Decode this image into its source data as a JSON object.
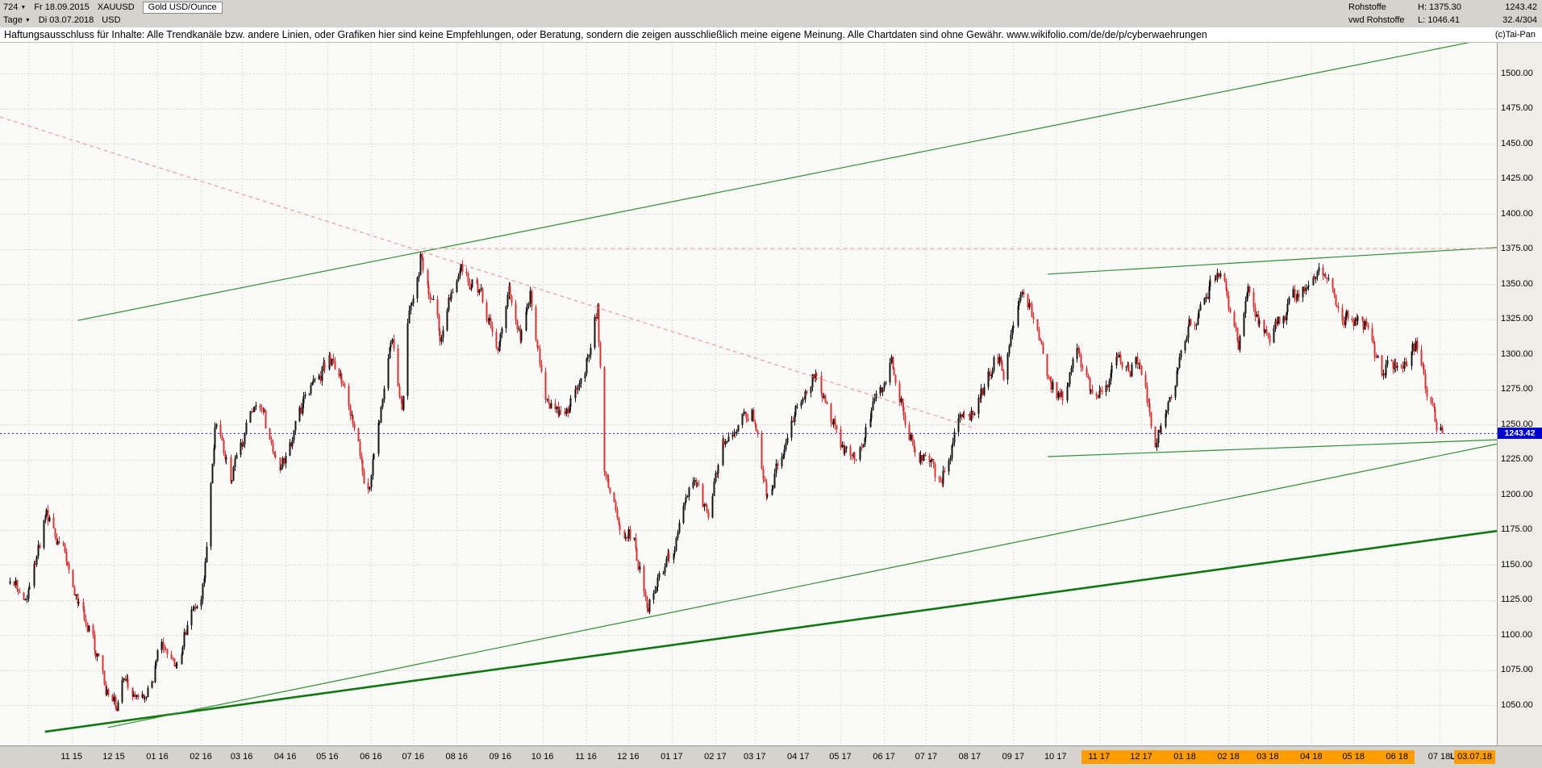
{
  "header": {
    "bars_count": "724",
    "date_from": "Fr 18.09.2015",
    "symbol": "XAUUSD",
    "instrument": "Gold USD/Ounce",
    "timeframe": "Tage",
    "date_to": "Di 03.07.2018",
    "currency": "USD",
    "right": {
      "category": "Rohstoffe",
      "high_label": "H: 1375.30",
      "last": "1243.42",
      "source": "vwd Rohstoffe",
      "low_label": "L: 1046.41",
      "ratio": "32.4/304",
      "copyright": "(c)Tai-Pan"
    }
  },
  "icons": {
    "dropdown": "▼"
  },
  "disclaimer": "Haftungsausschluss für Inhalte: Alle Trendkanäle bzw. andere Linien, oder Grafiken hier sind keine Empfehlungen, oder Beratung, sondern die zeigen ausschließlich meine eigene Meinung. Alle Chartdaten sind ohne Gewähr.  www.wikifolio.com/de/de/p/cyberwaehrungen",
  "chart_data": {
    "type": "candlestick",
    "title": "Gold USD/Ounce",
    "symbol": "XAUUSD",
    "date_start": "2015-09-18",
    "date_end": "2018-07-03",
    "bars": 724,
    "period_high": 1375.3,
    "period_low": 1046.41,
    "last": 1243.42,
    "last_price_label": "1243.42",
    "y_axis": {
      "min": 1050,
      "max": 1500,
      "step": 25,
      "labels": [
        "1500.00",
        "1475.00",
        "1450.00",
        "1425.00",
        "1400.00",
        "1375.00",
        "1350.00",
        "1325.00",
        "1300.00",
        "1275.00",
        "1250.00",
        "1225.00",
        "1200.00",
        "1175.00",
        "1150.00",
        "1125.00",
        "1100.00",
        "1075.00",
        "1050.00"
      ]
    },
    "x_axis": {
      "labels": [
        "11 15",
        "12 15",
        "01 16",
        "02 16",
        "03 16",
        "04 16",
        "05 16",
        "06 16",
        "07 16",
        "08 16",
        "09 16",
        "10 16",
        "11 16",
        "12 16",
        "01 17",
        "02 17",
        "03 17",
        "04 17",
        "05 17",
        "06 17",
        "07 17",
        "08 17",
        "09 17",
        "10 17",
        "11 17",
        "12 17",
        "01 18",
        "02 18",
        "03 18",
        "04 18",
        "05 18",
        "06 18",
        "07 18"
      ],
      "highlight_labels": [
        "11 17",
        "12 17",
        "01 18",
        "02 18",
        "03 18",
        "04 18",
        "05 18",
        "06 18"
      ],
      "end_label": "03.07.18",
      "last_marker": "L"
    },
    "keyframes": [
      [
        "2015-09-18",
        1139
      ],
      [
        "2015-09-29",
        1127
      ],
      [
        "2015-10-14",
        1187
      ],
      [
        "2015-10-28",
        1156
      ],
      [
        "2015-11-27",
        1057
      ],
      [
        "2015-12-03",
        1046.5
      ],
      [
        "2015-12-10",
        1075
      ],
      [
        "2015-12-17",
        1051
      ],
      [
        "2016-01-07",
        1095
      ],
      [
        "2016-01-14",
        1078
      ],
      [
        "2016-01-26",
        1120
      ],
      [
        "2016-02-03",
        1141
      ],
      [
        "2016-02-11",
        1247
      ],
      [
        "2016-02-22",
        1209
      ],
      [
        "2016-03-10",
        1271
      ],
      [
        "2016-03-28",
        1216
      ],
      [
        "2016-04-12",
        1257
      ],
      [
        "2016-05-02",
        1299
      ],
      [
        "2016-05-13",
        1272
      ],
      [
        "2016-05-30",
        1204
      ],
      [
        "2016-06-16",
        1312
      ],
      [
        "2016-06-23",
        1256
      ],
      [
        "2016-06-27",
        1324
      ],
      [
        "2016-07-06",
        1371
      ],
      [
        "2016-07-20",
        1314
      ],
      [
        "2016-08-02",
        1364
      ],
      [
        "2016-08-16",
        1345
      ],
      [
        "2016-08-31",
        1307
      ],
      [
        "2016-09-07",
        1349
      ],
      [
        "2016-09-15",
        1312
      ],
      [
        "2016-09-22",
        1342
      ],
      [
        "2016-10-04",
        1266
      ],
      [
        "2016-10-17",
        1250
      ],
      [
        "2016-11-04",
        1303
      ],
      [
        "2016-11-09",
        1334
      ],
      [
        "2016-11-14",
        1217
      ],
      [
        "2016-11-25",
        1178
      ],
      [
        "2016-12-05",
        1168
      ],
      [
        "2016-12-15",
        1123
      ],
      [
        "2016-12-30",
        1152
      ],
      [
        "2017-01-17",
        1213
      ],
      [
        "2017-01-27",
        1184
      ],
      [
        "2017-02-08",
        1241
      ],
      [
        "2017-02-27",
        1257
      ],
      [
        "2017-03-10",
        1197
      ],
      [
        "2017-03-27",
        1255
      ],
      [
        "2017-04-13",
        1288
      ],
      [
        "2017-05-09",
        1216
      ],
      [
        "2017-05-23",
        1261
      ],
      [
        "2017-06-06",
        1294
      ],
      [
        "2017-06-21",
        1243
      ],
      [
        "2017-07-10",
        1207
      ],
      [
        "2017-07-24",
        1254
      ],
      [
        "2017-08-04",
        1258
      ],
      [
        "2017-08-18",
        1296
      ],
      [
        "2017-08-25",
        1288
      ],
      [
        "2017-09-07",
        1350
      ],
      [
        "2017-09-27",
        1283
      ],
      [
        "2017-10-06",
        1267
      ],
      [
        "2017-10-16",
        1302
      ],
      [
        "2017-10-27",
        1266
      ],
      [
        "2017-11-17",
        1294
      ],
      [
        "2017-11-28",
        1292
      ],
      [
        "2017-12-12",
        1238
      ],
      [
        "2017-12-29",
        1302
      ],
      [
        "2018-01-15",
        1341
      ],
      [
        "2018-01-25",
        1361
      ],
      [
        "2018-02-08",
        1311
      ],
      [
        "2018-02-15",
        1354
      ],
      [
        "2018-03-01",
        1304
      ],
      [
        "2018-03-26",
        1352
      ],
      [
        "2018-04-11",
        1359
      ],
      [
        "2018-04-23",
        1324
      ],
      [
        "2018-05-10",
        1321
      ],
      [
        "2018-05-21",
        1286
      ],
      [
        "2018-06-14",
        1306
      ],
      [
        "2018-06-29",
        1250
      ],
      [
        "2018-07-03",
        1243.42
      ]
    ],
    "overlays": [
      {
        "name": "rising-channel-upper-line",
        "x1": 0.052,
        "p1": 1324,
        "x2": 1.0,
        "p2": 1526,
        "color": "#2f8f2f",
        "width": 1.2,
        "dash": null
      },
      {
        "name": "rising-support-major-line",
        "x1": 0.03,
        "p1": 1031,
        "x2": 1.0,
        "p2": 1174,
        "color": "#117711",
        "width": 2.6,
        "dash": null
      },
      {
        "name": "rising-support-inner-line",
        "x1": 0.072,
        "p1": 1034,
        "x2": 1.0,
        "p2": 1236,
        "color": "#2f8f2f",
        "width": 1.2,
        "dash": null
      },
      {
        "name": "resistance-triangle-upper-line",
        "x1": 0.7,
        "p1": 1357,
        "x2": 1.0,
        "p2": 1376,
        "color": "#2f8f2f",
        "width": 1.2,
        "dash": null
      },
      {
        "name": "support-triangle-lower-line",
        "x1": 0.7,
        "p1": 1227,
        "x2": 1.0,
        "p2": 1239,
        "color": "#2f8f2f",
        "width": 1.2,
        "dash": null
      },
      {
        "name": "falling-trendline-dashed",
        "x1": 0.0,
        "p1": 1469,
        "x2": 0.652,
        "p2": 1247,
        "color": "#ef9c9c",
        "width": 1.2,
        "dash": "5,4"
      },
      {
        "name": "horizontal-resistance-1375-dashed",
        "x1": 0.282,
        "p1": 1375.3,
        "x2": 1.0,
        "p2": 1375.3,
        "color": "#f2aaaa",
        "width": 1.2,
        "dash": "5,4"
      },
      {
        "name": "last-price-dotted-line",
        "x1": 0.0,
        "p1": 1243.42,
        "x2": 1.0,
        "p2": 1243.42,
        "color": "#2222cc",
        "width": 1,
        "dash": "2,3"
      }
    ],
    "colors": {
      "up": "#141414",
      "down": "#d63333",
      "grid": "#c8c8c8",
      "plot_bg": "#fafaf8",
      "trend_green": "#2f8f2f",
      "trend_green_dark": "#117711",
      "trend_pink": "#ef9c9c",
      "last_price_blue": "#2222cc",
      "price_tag_bg": "#0000cc",
      "axis_highlight_orange": "#ff9c00"
    }
  }
}
